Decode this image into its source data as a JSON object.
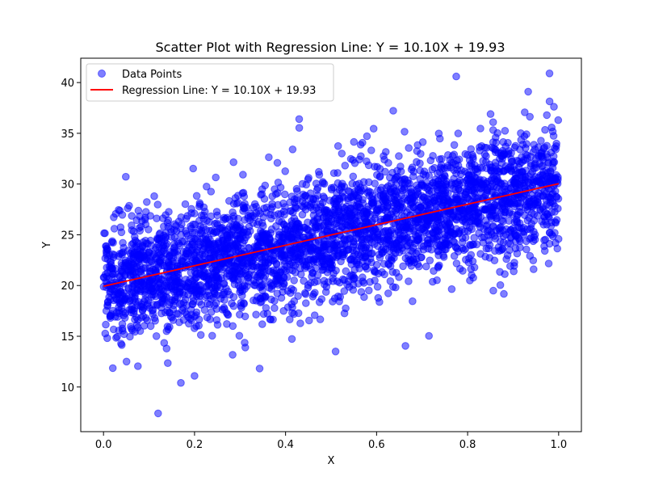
{
  "chart_data": {
    "type": "scatter",
    "title": "Scatter Plot with Regression Line: Y = 10.10X + 19.93",
    "xlabel": "X",
    "ylabel": "Y",
    "xlim": [
      -0.05,
      1.05
    ],
    "ylim": [
      5.6,
      42.4
    ],
    "xticks": [
      0.0,
      0.2,
      0.4,
      0.6,
      0.8,
      1.0
    ],
    "xtick_labels": [
      "0.0",
      "0.2",
      "0.4",
      "0.6",
      "0.8",
      "1.0"
    ],
    "yticks": [
      10,
      15,
      20,
      25,
      30,
      35,
      40
    ],
    "ytick_labels": [
      "10",
      "15",
      "20",
      "25",
      "30",
      "35",
      "40"
    ],
    "grid": false,
    "legend_position": "top-left",
    "series": [
      {
        "name": "Data Points",
        "kind": "scatter",
        "color": "#0000ff",
        "alpha": 0.5,
        "n_approx": 10000,
        "noise_std_approx": 3.0,
        "notable_points": [
          {
            "x": 0.12,
            "y": 7.4
          },
          {
            "x": 0.17,
            "y": 10.4
          },
          {
            "x": 0.2,
            "y": 11.1
          },
          {
            "x": 0.775,
            "y": 40.6
          },
          {
            "x": 0.98,
            "y": 40.9
          },
          {
            "x": 0.43,
            "y": 36.4
          },
          {
            "x": 0.51,
            "y": 13.5
          }
        ]
      },
      {
        "name": "Regression Line: Y = 10.10X + 19.93",
        "kind": "line",
        "color": "#ff0000",
        "slope": 10.1,
        "intercept": 19.93,
        "x": [
          0.0,
          1.0
        ],
        "y": [
          19.93,
          30.03
        ]
      }
    ]
  }
}
